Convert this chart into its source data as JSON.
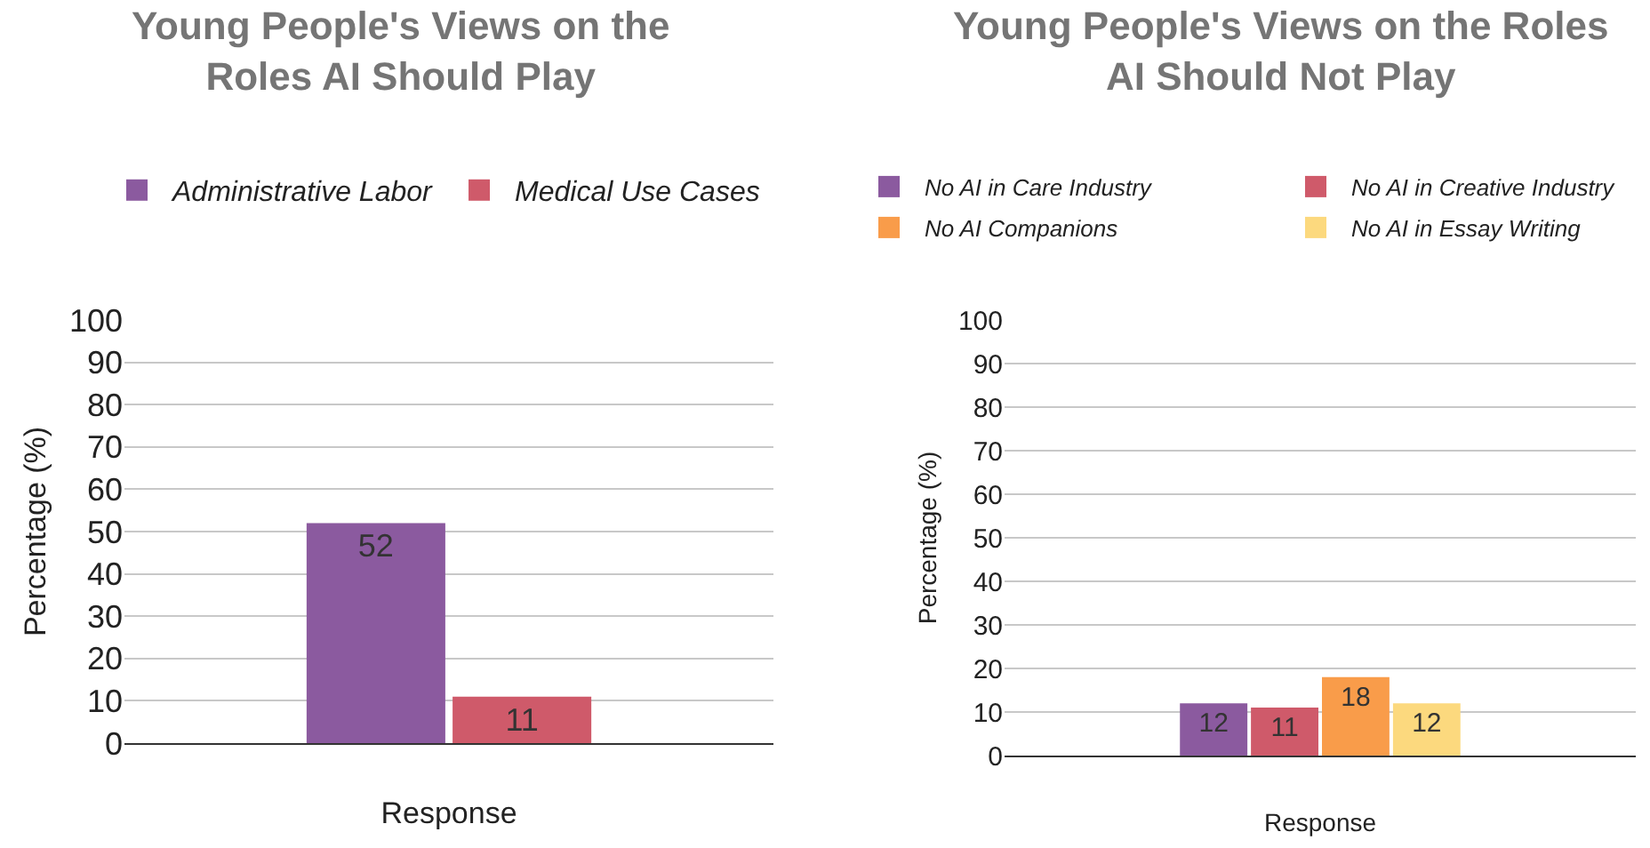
{
  "chart_data": [
    {
      "type": "bar",
      "title": "Young People's Views on the Roles AI Should Play",
      "xlabel": "Response",
      "ylabel": "Percentage (%)",
      "categories": [
        null
      ],
      "series": [
        {
          "name": "Administrative Labor",
          "color": "#8b5a9f",
          "values": [
            52
          ]
        },
        {
          "name": "Medical Use Cases",
          "color": "#cf5a6a",
          "values": [
            11
          ]
        }
      ],
      "ylim": [
        0,
        100
      ],
      "yticks": [
        0,
        10,
        20,
        30,
        40,
        50,
        60,
        70,
        80,
        90,
        100
      ],
      "grid": "y",
      "legend": "top",
      "data_labels": true
    },
    {
      "type": "bar",
      "title": "Young People's Views on the Roles AI Should Not Play",
      "xlabel": "Response",
      "ylabel": "Percentage (%)",
      "categories": [
        null
      ],
      "series": [
        {
          "name": "No AI in Care Industry",
          "color": "#8b5a9f",
          "values": [
            12
          ]
        },
        {
          "name": "No AI in Creative Industry",
          "color": "#cf5a6a",
          "values": [
            11
          ]
        },
        {
          "name": "No AI Companions",
          "color": "#f99c4a",
          "values": [
            18
          ]
        },
        {
          "name": "No AI in Essay Writing",
          "color": "#fcd97e",
          "values": [
            12
          ]
        }
      ],
      "ylim": [
        0,
        100
      ],
      "yticks": [
        0,
        10,
        20,
        30,
        40,
        50,
        60,
        70,
        80,
        90,
        100
      ],
      "grid": "y",
      "legend": "top",
      "data_labels": true
    }
  ]
}
